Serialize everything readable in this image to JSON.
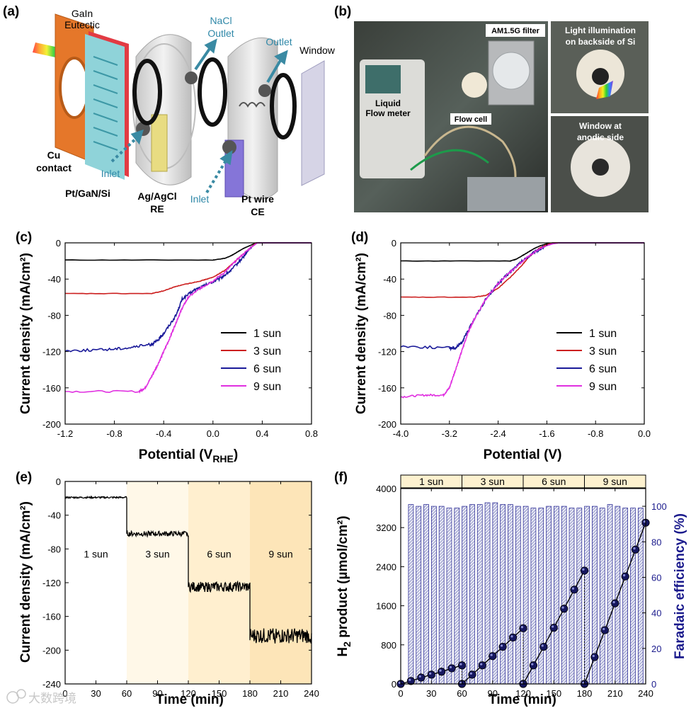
{
  "panels": {
    "a": {
      "letter": "(a)",
      "labels": [
        "GaIn",
        "Eutectic",
        "NaCl",
        "Outlet",
        "Outlet",
        "Window",
        "Cu",
        "contact",
        "Pt/GaN/Si",
        "Inlet",
        "Ag/AgCl",
        "RE",
        "Inlet",
        "Pt wire",
        "CE"
      ]
    },
    "b": {
      "letter": "(b)",
      "labels": [
        "AM1.5G filter",
        "Liquid",
        "Flow meter",
        "Flow cell",
        "Light illumination",
        "on backside of Si",
        "Window at",
        "anodic side"
      ]
    }
  },
  "legend": [
    "1 sun",
    "3 sun",
    "6 sun",
    "9 sun"
  ],
  "sun_labels": [
    "1 sun",
    "3 sun",
    "6 sun",
    "9 sun"
  ],
  "colors": {
    "s1": "#000000",
    "s3": "#cc1f1f",
    "s6": "#1a1a99",
    "s9": "#e030e0",
    "axis": "#000000",
    "navy": "#1a1a8c",
    "bar": "#6f74b8"
  },
  "watermark": "大数跨境",
  "chart_data": [
    {
      "id": "c",
      "letter": "(c)",
      "type": "line",
      "xlabel_main": "Potential (V",
      "xlabel_sub": "RHE",
      "xlabel_end": ")",
      "ylabel": "Current density (mA/cm²)",
      "xlim": [
        -1.2,
        0.8
      ],
      "ylim": [
        -200,
        0
      ],
      "xticks": [
        "-1.2",
        "-0.8",
        "-0.4",
        "0.0",
        "0.4",
        "0.8"
      ],
      "yticks": [
        "0",
        "-40",
        "-80",
        "-120",
        "-160",
        "-200"
      ],
      "series": [
        {
          "name": "1 sun",
          "x": [
            -1.2,
            0.0,
            0.1,
            0.15,
            0.2,
            0.25,
            0.3,
            0.35,
            0.8
          ],
          "y": [
            -19,
            -19,
            -17,
            -14,
            -10,
            -6,
            -3,
            0,
            0
          ]
        },
        {
          "name": "3 sun",
          "x": [
            -1.2,
            -0.5,
            -0.4,
            -0.3,
            -0.2,
            -0.1,
            0.0,
            0.1,
            0.2,
            0.3,
            0.35,
            0.8
          ],
          "y": [
            -56,
            -56,
            -53,
            -48,
            -45,
            -42,
            -38,
            -30,
            -18,
            -6,
            0,
            0
          ]
        },
        {
          "name": "6 sun",
          "x": [
            -1.2,
            -0.9,
            -0.7,
            -0.5,
            -0.45,
            -0.4,
            -0.3,
            -0.25,
            -0.15,
            -0.05,
            0.05,
            0.15,
            0.25,
            0.3,
            0.36,
            0.8
          ],
          "y": [
            -119,
            -118,
            -116,
            -112,
            -108,
            -100,
            -80,
            -62,
            -52,
            -46,
            -40,
            -30,
            -15,
            -6,
            0,
            0
          ]
        },
        {
          "name": "9 sun",
          "x": [
            -1.2,
            -0.6,
            -0.55,
            -0.5,
            -0.45,
            -0.4,
            -0.35,
            -0.3,
            -0.25,
            -0.2,
            -0.1,
            0.0,
            0.1,
            0.2,
            0.3,
            0.36,
            0.8
          ],
          "y": [
            -164,
            -164,
            -160,
            -148,
            -135,
            -120,
            -105,
            -88,
            -72,
            -60,
            -50,
            -42,
            -32,
            -18,
            -6,
            0,
            0
          ]
        }
      ],
      "legend_position": "bottom-right"
    },
    {
      "id": "d",
      "letter": "(d)",
      "type": "line",
      "xlabel": "Potential (V)",
      "ylabel": "Current density (mA/cm²)",
      "xlim": [
        -4.0,
        0.0
      ],
      "ylim": [
        -200,
        0
      ],
      "xticks": [
        "-4.0",
        "-3.2",
        "-2.4",
        "-1.6",
        "-0.8",
        "0.0"
      ],
      "yticks": [
        "0",
        "-40",
        "-80",
        "-120",
        "-160",
        "-200"
      ],
      "series": [
        {
          "name": "1 sun",
          "x": [
            -4.0,
            -2.2,
            -2.1,
            -2.0,
            -1.9,
            -1.8,
            -1.7,
            -1.6,
            -1.5,
            0.0
          ],
          "y": [
            -20,
            -20,
            -18,
            -14,
            -10,
            -6,
            -3,
            -1,
            0,
            0
          ]
        },
        {
          "name": "3 sun",
          "x": [
            -4.0,
            -2.8,
            -2.6,
            -2.4,
            -2.2,
            -2.0,
            -1.9,
            -1.8,
            -1.7,
            -1.6,
            -1.5,
            0.0
          ],
          "y": [
            -60,
            -60,
            -58,
            -50,
            -38,
            -24,
            -16,
            -10,
            -5,
            -2,
            0,
            0
          ]
        },
        {
          "name": "6 sun",
          "x": [
            -4.0,
            -3.2,
            -3.1,
            -3.0,
            -2.9,
            -2.8,
            -2.6,
            -2.4,
            -2.2,
            -2.0,
            -1.8,
            -1.6,
            -1.5,
            -1.4,
            0.0
          ],
          "y": [
            -114,
            -116,
            -116,
            -110,
            -98,
            -85,
            -62,
            -45,
            -32,
            -20,
            -10,
            -3,
            -1,
            0,
            0
          ]
        },
        {
          "name": "9 sun",
          "x": [
            -4.0,
            -3.6,
            -3.3,
            -3.2,
            -3.1,
            -3.0,
            -2.9,
            -2.8,
            -2.6,
            -2.4,
            -2.2,
            -2.0,
            -1.8,
            -1.6,
            -1.5,
            -1.4,
            0.0
          ],
          "y": [
            -170,
            -168,
            -168,
            -160,
            -140,
            -120,
            -100,
            -85,
            -62,
            -45,
            -32,
            -20,
            -10,
            -3,
            -1,
            0,
            0
          ]
        }
      ],
      "legend_position": "bottom-right"
    },
    {
      "id": "e",
      "letter": "(e)",
      "type": "line",
      "xlabel": "Time (min)",
      "ylabel": "Current density (mA/cm²)",
      "xlim": [
        0,
        240
      ],
      "ylim": [
        -240,
        0
      ],
      "xticks": [
        "0",
        "30",
        "60",
        "90",
        "120",
        "150",
        "180",
        "210",
        "240"
      ],
      "yticks": [
        "0",
        "-40",
        "-80",
        "-120",
        "-160",
        "-200",
        "-240"
      ],
      "segments": [
        {
          "label": "1 sun",
          "x0": 0,
          "x1": 60,
          "y": -19,
          "noise": 1
        },
        {
          "label": "3 sun",
          "x0": 60,
          "x1": 120,
          "y": -62,
          "noise": 3
        },
        {
          "label": "6 sun",
          "x0": 120,
          "x1": 180,
          "y": -125,
          "noise": 6
        },
        {
          "label": "9 sun",
          "x0": 180,
          "x1": 240,
          "y": -183,
          "noise": 9
        }
      ],
      "shade_colors": [
        "#ffffff",
        "#fff8e8",
        "#ffefcf",
        "#fde5b8"
      ]
    },
    {
      "id": "f",
      "letter": "(f)",
      "type": "scatter",
      "xlabel": "Time (min)",
      "ylabel_main": "H",
      "ylabel_sub": "2",
      "ylabel_end": " product (µmol/cm²)",
      "y2label": "Faradaic efficiency (%)",
      "xlim": [
        0,
        240
      ],
      "ylim": [
        0,
        4000
      ],
      "y2lim": [
        0,
        110
      ],
      "xticks": [
        "0",
        "30",
        "60",
        "90",
        "120",
        "150",
        "180",
        "210",
        "240"
      ],
      "yticks": [
        "0",
        "800",
        "1600",
        "2400",
        "3200",
        "4000"
      ],
      "y2ticks": [
        "0",
        "20",
        "40",
        "60",
        "80",
        "100"
      ],
      "segments": [
        {
          "x": [
            0,
            10,
            20,
            30,
            40,
            50,
            60
          ],
          "y": [
            0,
            60,
            130,
            190,
            250,
            320,
            380
          ]
        },
        {
          "x": [
            60,
            70,
            80,
            90,
            100,
            110,
            120
          ],
          "y": [
            0,
            190,
            380,
            570,
            760,
            950,
            1140
          ]
        },
        {
          "x": [
            120,
            130,
            140,
            150,
            160,
            170,
            180
          ],
          "y": [
            0,
            380,
            760,
            1150,
            1540,
            1930,
            2320
          ]
        },
        {
          "x": [
            180,
            190,
            200,
            210,
            220,
            230,
            240
          ],
          "y": [
            0,
            550,
            1100,
            1650,
            2200,
            2750,
            3300
          ]
        }
      ],
      "bars": {
        "x": [
          10,
          17.5,
          25,
          32.5,
          40,
          47.5,
          55,
          62.5,
          70,
          77.5,
          85,
          92.5,
          100,
          107.5,
          115,
          122.5,
          130,
          137.5,
          145,
          152.5,
          160,
          167.5,
          175,
          182.5,
          190,
          197.5,
          205,
          212.5,
          220,
          227.5,
          235
        ],
        "values": [
          101,
          100,
          101,
          100,
          100,
          99,
          99,
          100,
          101,
          101,
          102,
          102,
          101,
          101,
          100,
          100,
          99,
          99,
          100,
          100,
          100,
          99,
          99,
          100,
          100,
          99,
          101,
          100,
          99,
          99,
          99
        ]
      }
    }
  ]
}
